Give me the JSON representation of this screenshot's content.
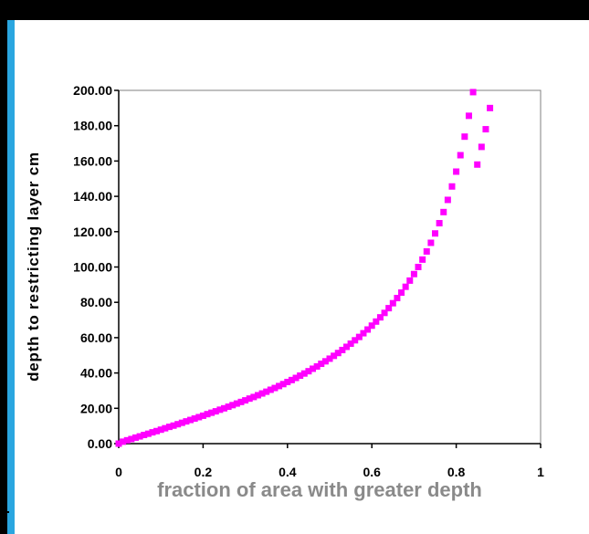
{
  "chart_data": {
    "type": "scatter",
    "title": "",
    "xlabel": "fraction of area with greater depth",
    "ylabel": "depth to restricting layer cm",
    "xlim": [
      0,
      1
    ],
    "ylim": [
      0,
      200
    ],
    "x_ticks": [
      "0",
      "0.2",
      "0.4",
      "0.6",
      "0.8",
      "1"
    ],
    "y_ticks": [
      "0.00",
      "20.00",
      "40.00",
      "60.00",
      "80.00",
      "100.00",
      "120.00",
      "140.00",
      "160.00",
      "180.00",
      "200.00"
    ],
    "grid": false,
    "legend": "none",
    "marker_color": "#ff00ff",
    "marker": "square",
    "series": [
      {
        "x": [
          0,
          0.01,
          0.02,
          0.03,
          0.04,
          0.05,
          0.06,
          0.07,
          0.08,
          0.09,
          0.1,
          0.11,
          0.12,
          0.13,
          0.14,
          0.15,
          0.16,
          0.17,
          0.18,
          0.19,
          0.2,
          0.21,
          0.22,
          0.23,
          0.24,
          0.25,
          0.26,
          0.27,
          0.28,
          0.29,
          0.3,
          0.31,
          0.32,
          0.33,
          0.34,
          0.35,
          0.36,
          0.37,
          0.38,
          0.39,
          0.4,
          0.41,
          0.42,
          0.43,
          0.44,
          0.45,
          0.46,
          0.47,
          0.48,
          0.49,
          0.5,
          0.51,
          0.52,
          0.53,
          0.54,
          0.55,
          0.56,
          0.57,
          0.58,
          0.59,
          0.6,
          0.61,
          0.62,
          0.63,
          0.64,
          0.65,
          0.66,
          0.67,
          0.68,
          0.69,
          0.7,
          0.71,
          0.72,
          0.73,
          0.74,
          0.75,
          0.76,
          0.77,
          0.78,
          0.79,
          0.8,
          0.81,
          0.82,
          0.83,
          0.84,
          0.85,
          0.86,
          0.87,
          0.88
        ],
        "y": [
          0,
          1.1,
          1.9,
          2.6,
          3.4,
          4.1,
          4.9,
          5.6,
          6.4,
          7.1,
          7.9,
          8.7,
          9.5,
          10.2,
          11,
          11.8,
          12.6,
          13.4,
          14.2,
          15,
          15.8,
          16.7,
          17.5,
          18.3,
          19.2,
          20,
          20.9,
          21.8,
          22.7,
          23.6,
          24.5,
          25.5,
          26.4,
          27.4,
          28.4,
          29.4,
          30.5,
          31.5,
          32.6,
          33.7,
          34.9,
          36,
          37.2,
          38.5,
          39.7,
          41,
          42.4,
          43.7,
          45.2,
          46.6,
          48.1,
          49.7,
          51.3,
          53,
          54.8,
          56.6,
          58.5,
          60.4,
          62.5,
          64.6,
          66.8,
          69.1,
          71.5,
          74,
          76.7,
          79.5,
          82.4,
          85.5,
          88.8,
          92.3,
          96,
          100,
          104.2,
          108.8,
          113.7,
          119,
          124.8,
          131.1,
          138,
          145.6,
          154,
          163.3,
          173.8,
          185.6,
          199,
          158,
          168,
          178,
          190
        ]
      }
    ]
  }
}
